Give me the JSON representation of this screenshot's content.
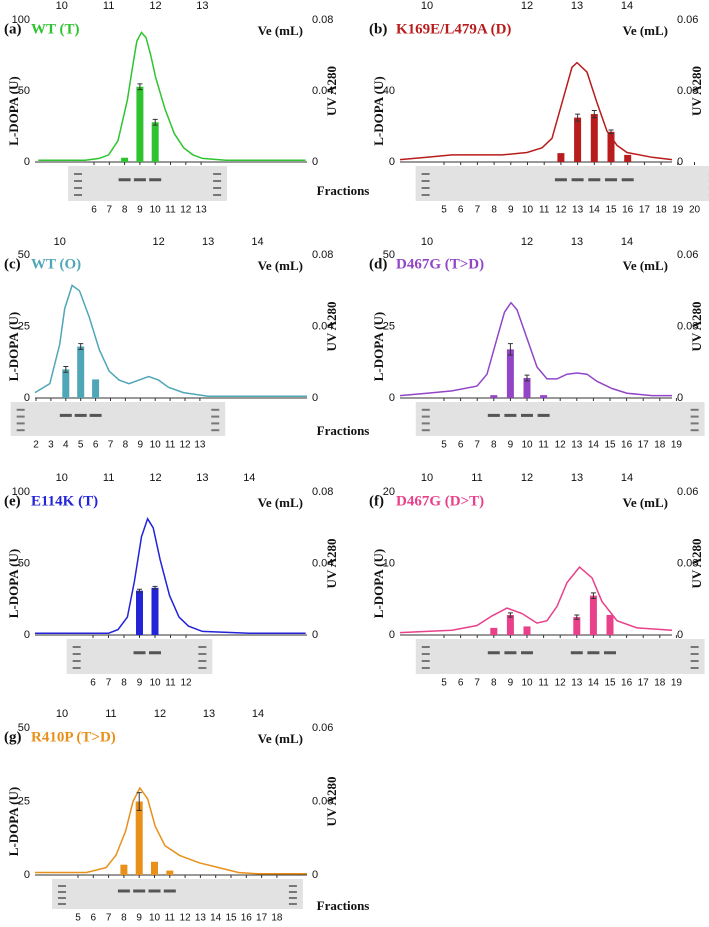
{
  "chart_data": [
    {
      "type": "combo",
      "label": "(a)",
      "title": "WT (T)",
      "xlabel": "Ve (mL)",
      "ylabel": "L-DOPA (U)",
      "y2label": "UV A280",
      "xlabel2": "Fractions",
      "color": "#2fc42f",
      "xlim": [
        9.43,
        15.23
      ],
      "xticks": [
        10,
        11,
        12,
        13
      ],
      "ylim": [
        0,
        100
      ],
      "yticks": [
        0,
        50,
        100
      ],
      "y2lim": [
        0,
        0.08
      ],
      "y2ticks": [
        0,
        0.04,
        0.08
      ],
      "categories": [
        "6",
        "7",
        "8",
        "9",
        "10",
        "11",
        "12",
        "13"
      ],
      "values": [
        null,
        null,
        3,
        53,
        28,
        null,
        null,
        null
      ],
      "errors": [
        null,
        null,
        null,
        2,
        2,
        null,
        null,
        null
      ],
      "line": {
        "axis": "y2",
        "x": [
          9.5,
          10,
          10.5,
          10.8,
          11,
          11.2,
          11.4,
          11.5,
          11.6,
          11.7,
          11.8,
          11.9,
          12,
          12.2,
          12.4,
          12.6,
          12.8,
          13,
          13.5,
          14,
          14.5,
          15.2
        ],
        "values": [
          0.001,
          0.001,
          0.001,
          0.002,
          0.004,
          0.012,
          0.035,
          0.052,
          0.068,
          0.073,
          0.07,
          0.06,
          0.048,
          0.03,
          0.016,
          0.008,
          0.004,
          0.002,
          0.001,
          0.001,
          0.001,
          0.001
        ]
      }
    },
    {
      "type": "combo",
      "label": "(b)",
      "title": "K169E/L479A (D)",
      "xlabel": "Ve (mL)",
      "ylabel": "L-DOPA (U)",
      "y2label": "UV A280",
      "color": "#b81c1c",
      "xlim": [
        9.46,
        14.9
      ],
      "xticks": [
        10,
        12,
        13,
        14
      ],
      "ylim": [
        0,
        80
      ],
      "yticks": [
        0,
        40
      ],
      "y2lim": [
        0,
        0.06
      ],
      "y2ticks": [
        0,
        0.03,
        0.06
      ],
      "categories": [
        "5",
        "6",
        "7",
        "8",
        "9",
        "10",
        "11",
        "12",
        "13",
        "14",
        "15",
        "16",
        "17",
        "18",
        "19",
        "20"
      ],
      "values": [
        null,
        null,
        null,
        null,
        null,
        null,
        null,
        5,
        25,
        27,
        17,
        4,
        null,
        null,
        null,
        null
      ],
      "errors": [
        null,
        null,
        null,
        null,
        null,
        null,
        null,
        null,
        2,
        2,
        1,
        null,
        null,
        null,
        null,
        null
      ],
      "line": {
        "axis": "y2",
        "x": [
          9.46,
          10,
          10.5,
          11,
          11.5,
          12,
          12.3,
          12.5,
          12.7,
          12.9,
          13,
          13.2,
          13.4,
          13.6,
          13.8,
          14,
          14.5,
          14.9
        ],
        "values": [
          0.001,
          0.002,
          0.003,
          0.003,
          0.003,
          0.004,
          0.006,
          0.01,
          0.025,
          0.04,
          0.042,
          0.038,
          0.025,
          0.013,
          0.007,
          0.004,
          0.002,
          0.001
        ]
      }
    },
    {
      "type": "combo",
      "label": "(c)",
      "title": "WT (O)",
      "xlabel": "Ve (mL)",
      "ylabel": "L-DOPA (U)",
      "y2label": "UV A280",
      "xlabel2": "Fractions",
      "color": "#4fa6b6",
      "xlim": [
        9.5,
        15
      ],
      "xticks": [
        10,
        12,
        13,
        14
      ],
      "ylim": [
        0,
        50
      ],
      "yticks": [
        0,
        25,
        50
      ],
      "y2lim": [
        0,
        0.08
      ],
      "y2ticks": [
        0,
        0.04,
        0.08
      ],
      "categories": [
        "2",
        "3",
        "4",
        "5",
        "6",
        "7",
        "8",
        "9",
        "10",
        "11",
        "12",
        "13"
      ],
      "values": [
        null,
        null,
        10,
        18,
        6.5,
        null,
        null,
        null,
        null,
        null,
        null,
        null
      ],
      "errors": [
        null,
        null,
        1,
        1,
        null,
        null,
        null,
        null,
        null,
        null,
        null,
        null
      ],
      "line": {
        "axis": "y2",
        "x": [
          9.5,
          9.8,
          10,
          10.1,
          10.25,
          10.4,
          10.6,
          10.8,
          11,
          11.2,
          11.4,
          11.6,
          11.8,
          12,
          12.2,
          12.5,
          13,
          14,
          15
        ],
        "values": [
          0.003,
          0.008,
          0.03,
          0.05,
          0.063,
          0.06,
          0.045,
          0.027,
          0.015,
          0.01,
          0.008,
          0.01,
          0.012,
          0.01,
          0.006,
          0.003,
          0.001,
          0.001,
          0.001
        ]
      }
    },
    {
      "type": "combo",
      "label": "(d)",
      "title": "D467G (T>D)",
      "xlabel": "Ve (mL)",
      "ylabel": "L-DOPA (U)",
      "y2label": "UV A280",
      "color": "#9246c6",
      "xlim": [
        9.46,
        14.9
      ],
      "xticks": [
        10,
        12,
        13,
        14
      ],
      "ylim": [
        0,
        50
      ],
      "yticks": [
        0,
        25,
        50
      ],
      "y2lim": [
        0,
        0.06
      ],
      "y2ticks": [
        0,
        0.03,
        0.06
      ],
      "categories": [
        "5",
        "6",
        "7",
        "8",
        "9",
        "10",
        "11",
        "12",
        "13",
        "14",
        "15",
        "16",
        "17",
        "18",
        "19"
      ],
      "values": [
        null,
        null,
        null,
        1,
        17,
        7,
        1,
        null,
        null,
        null,
        null,
        null,
        null,
        null,
        null
      ],
      "errors": [
        null,
        null,
        null,
        null,
        2,
        1,
        null,
        null,
        null,
        null,
        null,
        null,
        null,
        null,
        null
      ],
      "line": {
        "axis": "y2",
        "x": [
          9.46,
          10,
          10.5,
          11,
          11.2,
          11.4,
          11.55,
          11.68,
          11.8,
          12,
          12.2,
          12.4,
          12.6,
          12.8,
          13,
          13.2,
          13.4,
          13.7,
          14,
          14.5,
          14.9
        ],
        "values": [
          0.001,
          0.002,
          0.003,
          0.005,
          0.01,
          0.025,
          0.036,
          0.04,
          0.037,
          0.025,
          0.013,
          0.008,
          0.008,
          0.01,
          0.0105,
          0.01,
          0.007,
          0.004,
          0.002,
          0.001,
          0.001
        ]
      }
    },
    {
      "type": "combo",
      "label": "(e)",
      "title": "E114K (T)",
      "xlabel": "Ve (mL)",
      "ylabel": "L-DOPA (U)",
      "y2label": "UV A280",
      "color": "#2323d8",
      "xlim": [
        9.43,
        15.23
      ],
      "xticks": [
        10,
        11,
        12,
        13,
        14
      ],
      "ylim": [
        0,
        100
      ],
      "yticks": [
        0,
        50,
        100
      ],
      "y2lim": [
        0,
        0.08
      ],
      "y2ticks": [
        0,
        0.04,
        0.08
      ],
      "categories": [
        "6",
        "7",
        "8",
        "9",
        "10",
        "11",
        "12"
      ],
      "values": [
        null,
        null,
        null,
        31,
        33,
        null,
        null
      ],
      "errors": [
        null,
        null,
        null,
        1,
        1,
        null,
        null
      ],
      "line": {
        "axis": "y2",
        "x": [
          9.43,
          10,
          11,
          11.2,
          11.4,
          11.55,
          11.7,
          11.83,
          11.95,
          12.1,
          12.3,
          12.5,
          12.7,
          13,
          14,
          15.2
        ],
        "values": [
          0.001,
          0.001,
          0.001,
          0.003,
          0.01,
          0.03,
          0.055,
          0.065,
          0.06,
          0.042,
          0.022,
          0.01,
          0.005,
          0.002,
          0.001,
          0.001
        ]
      }
    },
    {
      "type": "combo",
      "label": "(f)",
      "title": "D467G (D>T)",
      "xlabel": "Ve (mL)",
      "ylabel": "L-DOPA (U)",
      "y2label": "UV A280",
      "color": "#e8408a",
      "xlim": [
        9.46,
        14.9
      ],
      "xticks": [
        10,
        11,
        12,
        13,
        14
      ],
      "ylim": [
        0,
        20
      ],
      "yticks": [
        0,
        10,
        20
      ],
      "y2lim": [
        0,
        0.06
      ],
      "y2ticks": [
        0,
        0.03,
        0.06
      ],
      "categories": [
        "5",
        "6",
        "7",
        "8",
        "9",
        "10",
        "11",
        "12",
        "13",
        "14",
        "15",
        "16",
        "17",
        "18",
        "19"
      ],
      "values": [
        null,
        null,
        null,
        1,
        2.8,
        1.2,
        null,
        null,
        2.5,
        5.5,
        2.8,
        null,
        null,
        null,
        null
      ],
      "errors": [
        null,
        null,
        null,
        null,
        0.3,
        null,
        null,
        null,
        0.3,
        0.4,
        null,
        null,
        null,
        null,
        null
      ],
      "line": {
        "axis": "y2",
        "x": [
          9.46,
          10,
          10.5,
          11,
          11.3,
          11.6,
          11.9,
          12.2,
          12.4,
          12.6,
          12.8,
          13.05,
          13.3,
          13.5,
          13.8,
          14.2,
          14.9
        ],
        "values": [
          0.001,
          0.0015,
          0.002,
          0.004,
          0.008,
          0.0113,
          0.009,
          0.005,
          0.006,
          0.012,
          0.022,
          0.0285,
          0.024,
          0.014,
          0.006,
          0.003,
          0.002
        ]
      }
    },
    {
      "type": "combo",
      "label": "(g)",
      "title": "R410P (T>D)",
      "xlabel": "Ve (mL)",
      "ylabel": "L-DOPA (U)",
      "y2label": "UV A280",
      "xlabel2": "Fractions",
      "color": "#e8901a",
      "xlim": [
        9.45,
        15
      ],
      "xticks": [
        10,
        11,
        12,
        13,
        14
      ],
      "ylim": [
        0,
        50
      ],
      "yticks": [
        0,
        25,
        50
      ],
      "y2lim": [
        0,
        0.06
      ],
      "y2ticks": [
        0,
        0.03,
        0.06
      ],
      "categories": [
        "5",
        "6",
        "7",
        "8",
        "9",
        "10",
        "11",
        "12",
        "13",
        "14",
        "15",
        "16",
        "17",
        "18"
      ],
      "values": [
        null,
        null,
        null,
        3.5,
        25,
        4.5,
        1.5,
        null,
        null,
        null,
        null,
        null,
        null,
        null
      ],
      "errors": [
        null,
        null,
        null,
        null,
        3,
        null,
        null,
        null,
        null,
        null,
        null,
        null,
        null,
        null
      ],
      "line": {
        "axis": "y2",
        "x": [
          9.45,
          10,
          10.5,
          10.9,
          11.1,
          11.3,
          11.45,
          11.59,
          11.75,
          11.9,
          12.1,
          12.4,
          12.8,
          13.2,
          13.6,
          14,
          15
        ],
        "values": [
          0.001,
          0.001,
          0.001,
          0.003,
          0.008,
          0.018,
          0.03,
          0.0355,
          0.031,
          0.02,
          0.012,
          0.008,
          0.005,
          0.003,
          0.001,
          0.0005,
          0.0005
        ]
      }
    }
  ]
}
